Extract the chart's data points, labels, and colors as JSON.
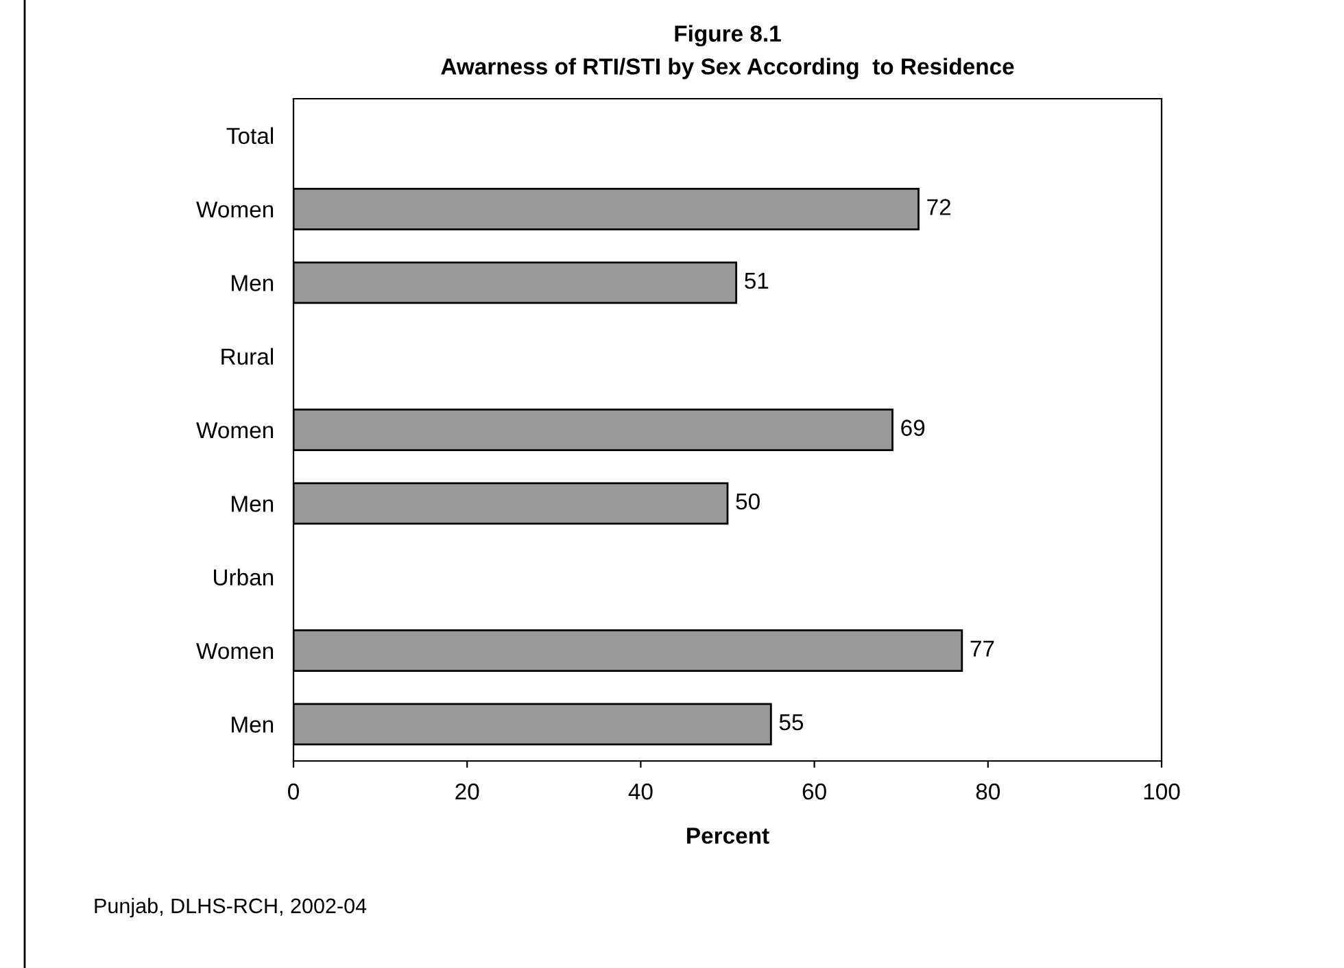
{
  "chart_data": {
    "type": "bar",
    "orientation": "horizontal",
    "title": "Figure 8.1",
    "subtitle": "Awarness of RTI/STI by Sex According  to Residence",
    "categories": [
      "Total",
      "Women",
      "Men",
      "Rural",
      "Women",
      "Men",
      "Urban",
      "Women",
      "Men"
    ],
    "values": [
      null,
      72,
      51,
      null,
      69,
      50,
      null,
      77,
      55
    ],
    "color": "#999999",
    "data_labels": true,
    "xlim": [
      0,
      100
    ],
    "xticks": [
      0,
      20,
      40,
      60,
      80,
      100
    ],
    "xlabel": "Percent",
    "grid": false,
    "annotations": [
      "Punjab, DLHS-RCH, 2002-04"
    ]
  }
}
